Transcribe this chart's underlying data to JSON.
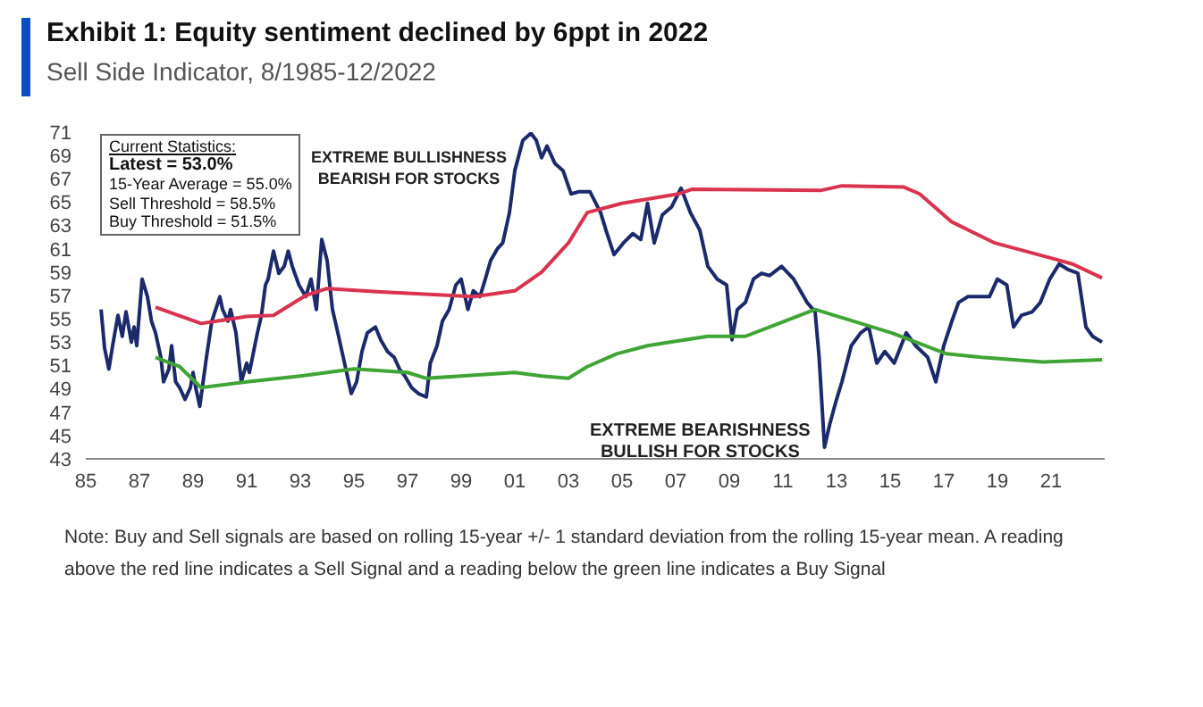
{
  "chart_data": {
    "type": "line",
    "title": "Exhibit 1: Equity sentiment declined by 6ppt in 2022",
    "subtitle": "Sell Side Indicator, 8/1985-12/2022",
    "annotations": [
      "Current Statistics:\nLatest = 53.0%\n15-Year Average = 55.0%\nSell Threshold = 58.5%\nBuy Threshold = 51.5%",
      "EXTREME BULLISHNESS\nBEARISH FOR STOCKS",
      "EXTREME BEARISHNESS\nBULLISH FOR STOCKS",
      "Note: Buy and Sell signals are based on rolling 15-year +/- 1 standard deviation from the rolling 15-year mean. A reading above the red line indicates a Sell Signal and a reading below the green line indicates a Buy Signal"
    ],
    "series": [
      {
        "color": "#1c2a6b",
        "x": [
          1985.57,
          1985.7,
          1985.86,
          1986.0,
          1986.2,
          1986.36,
          1986.5,
          1986.7,
          1986.8,
          1986.9,
          1987.1,
          1987.3,
          1987.45,
          1987.6,
          1987.8,
          1987.9,
          1988.1,
          1988.2,
          1988.35,
          1988.5,
          1988.7,
          1988.9,
          1989.0,
          1989.1,
          1989.25,
          1989.5,
          1989.7,
          1990.0,
          1990.1,
          1990.3,
          1990.4,
          1990.6,
          1990.8,
          1991.0,
          1991.1,
          1991.4,
          1991.55,
          1991.7,
          1991.8,
          1992.0,
          1992.2,
          1992.4,
          1992.55,
          1992.7,
          1992.95,
          1993.2,
          1993.4,
          1993.6,
          1993.8,
          1994.0,
          1994.2,
          1994.4,
          1994.65,
          1994.9,
          1995.1,
          1995.3,
          1995.5,
          1995.8,
          1996.0,
          1996.25,
          1996.5,
          1996.7,
          1996.9,
          1997.15,
          1997.4,
          1997.7,
          1997.85,
          1998.1,
          1998.3,
          1998.55,
          1998.8,
          1999.0,
          1999.25,
          1999.45,
          1999.7,
          1999.9,
          2000.1,
          2000.35,
          2000.55,
          2000.8,
          2001.0,
          2001.3,
          2001.6,
          2001.8,
          2002.0,
          2002.2,
          2002.5,
          2002.8,
          2003.1,
          2003.4,
          2003.8,
          2004.2,
          2004.4,
          2004.7,
          2005.05,
          2005.4,
          2005.7,
          2005.95,
          2006.2,
          2006.5,
          2006.85,
          2007.2,
          2007.55,
          2007.9,
          2008.2,
          2008.55,
          2008.9,
          2009.1,
          2009.3,
          2009.6,
          2009.9,
          2010.2,
          2010.5,
          2010.95,
          2011.4,
          2011.9,
          2012.2,
          2012.35,
          2012.55,
          2012.75,
          2013.0,
          2013.2,
          2013.55,
          2013.9,
          2014.2,
          2014.5,
          2014.8,
          2015.15,
          2015.6,
          2015.95,
          2016.4,
          2016.7,
          2017.0,
          2017.3,
          2017.55,
          2017.9,
          2018.35,
          2018.7,
          2019.0,
          2019.35,
          2019.6,
          2019.9,
          2020.3,
          2020.6,
          2020.95,
          2021.3,
          2021.65,
          2022.0,
          2022.3,
          2022.55,
          2022.9
        ],
        "values": [
          55.8,
          52.5,
          50.7,
          52.7,
          55.3,
          53.5,
          55.6,
          53.0,
          54.3,
          52.7,
          58.4,
          56.9,
          54.8,
          53.8,
          51.7,
          49.6,
          50.7,
          52.7,
          49.6,
          49.1,
          48.1,
          49.1,
          50.4,
          49.1,
          47.5,
          51.7,
          54.8,
          56.9,
          55.8,
          54.8,
          55.8,
          53.8,
          49.6,
          51.2,
          50.4,
          53.8,
          55.3,
          57.9,
          58.4,
          60.8,
          58.9,
          59.5,
          60.8,
          59.5,
          57.9,
          56.9,
          58.4,
          55.8,
          61.8,
          60.0,
          55.8,
          53.8,
          51.2,
          48.6,
          49.6,
          52.2,
          53.8,
          54.3,
          53.2,
          52.2,
          51.7,
          50.7,
          50.1,
          49.1,
          48.6,
          48.3,
          51.2,
          52.7,
          54.8,
          55.8,
          57.9,
          58.4,
          55.8,
          57.4,
          56.9,
          58.4,
          60.0,
          61.0,
          61.5,
          64.1,
          67.7,
          70.3,
          70.9,
          70.3,
          68.8,
          69.8,
          68.3,
          67.7,
          65.7,
          65.9,
          65.9,
          64.1,
          62.6,
          60.5,
          61.5,
          62.3,
          61.8,
          64.9,
          61.5,
          63.9,
          64.6,
          66.2,
          64.1,
          62.6,
          59.5,
          58.4,
          57.9,
          53.2,
          55.8,
          56.4,
          58.4,
          58.9,
          58.7,
          59.5,
          58.4,
          56.4,
          55.6,
          51.7,
          44.0,
          46.0,
          48.1,
          49.6,
          52.7,
          53.8,
          54.3,
          51.2,
          52.2,
          51.2,
          53.8,
          52.7,
          51.7,
          49.6,
          52.7,
          54.8,
          56.4,
          56.9,
          56.9,
          56.9,
          58.4,
          57.9,
          54.3,
          55.3,
          55.6,
          56.4,
          58.4,
          59.7,
          59.2,
          58.9,
          54.3,
          53.5,
          53.0
        ]
      },
      {
        "color": "#d9334f",
        "x": [
          1987.6,
          1989.3,
          1991.0,
          1992.0,
          1993.2,
          1994.0,
          1996.0,
          1999.5,
          2001.0,
          2002.0,
          2003.0,
          2003.7,
          2005.0,
          2007.1,
          2007.6,
          2012.4,
          2013.2,
          2015.5,
          2016.1,
          2017.3,
          2018.9,
          2021.0,
          2021.8,
          2022.9
        ],
        "values": [
          56.0,
          54.6,
          55.2,
          55.3,
          57.0,
          57.6,
          57.3,
          56.9,
          57.4,
          59.0,
          61.5,
          64.1,
          64.9,
          65.7,
          66.1,
          66.0,
          66.4,
          66.3,
          65.7,
          63.3,
          61.5,
          60.2,
          59.7,
          58.5
        ]
      },
      {
        "color": "#3fa535",
        "x": [
          1987.6,
          1988.5,
          1989.3,
          1991.0,
          1993.0,
          1995.0,
          1997.0,
          1997.7,
          2001.0,
          2002.0,
          2003.0,
          2003.7,
          2004.8,
          2005.95,
          2008.2,
          2009.6,
          2010.5,
          2012.2,
          2013.2,
          2015.05,
          2017.1,
          2018.4,
          2020.7,
          2022.9
        ],
        "values": [
          51.7,
          50.9,
          49.1,
          49.6,
          50.1,
          50.7,
          50.4,
          49.9,
          50.4,
          50.1,
          49.9,
          50.9,
          52.0,
          52.7,
          53.5,
          53.5,
          54.3,
          55.8,
          55.1,
          53.8,
          52.0,
          51.7,
          51.3,
          51.5
        ]
      }
    ],
    "xlim": [
      1985,
      2023
    ],
    "xticks": [
      {
        "value": 1985,
        "label": "85"
      },
      {
        "value": 1987,
        "label": "87"
      },
      {
        "value": 1989,
        "label": "89"
      },
      {
        "value": 1991,
        "label": "91"
      },
      {
        "value": 1993,
        "label": "93"
      },
      {
        "value": 1995,
        "label": "95"
      },
      {
        "value": 1997,
        "label": "97"
      },
      {
        "value": 1999,
        "label": "99"
      },
      {
        "value": 2001,
        "label": "01"
      },
      {
        "value": 2003,
        "label": "03"
      },
      {
        "value": 2005,
        "label": "05"
      },
      {
        "value": 2007,
        "label": "07"
      },
      {
        "value": 2009,
        "label": "09"
      },
      {
        "value": 2011,
        "label": "11"
      },
      {
        "value": 2013,
        "label": "13"
      },
      {
        "value": 2015,
        "label": "15"
      },
      {
        "value": 2017,
        "label": "17"
      },
      {
        "value": 2019,
        "label": "19"
      },
      {
        "value": 2021,
        "label": "21"
      }
    ],
    "ylim": [
      43,
      71
    ],
    "yticks": [
      43,
      45,
      47,
      49,
      51,
      53,
      55,
      57,
      59,
      61,
      63,
      65,
      67,
      69,
      71
    ],
    "grid": false,
    "legend": false
  }
}
